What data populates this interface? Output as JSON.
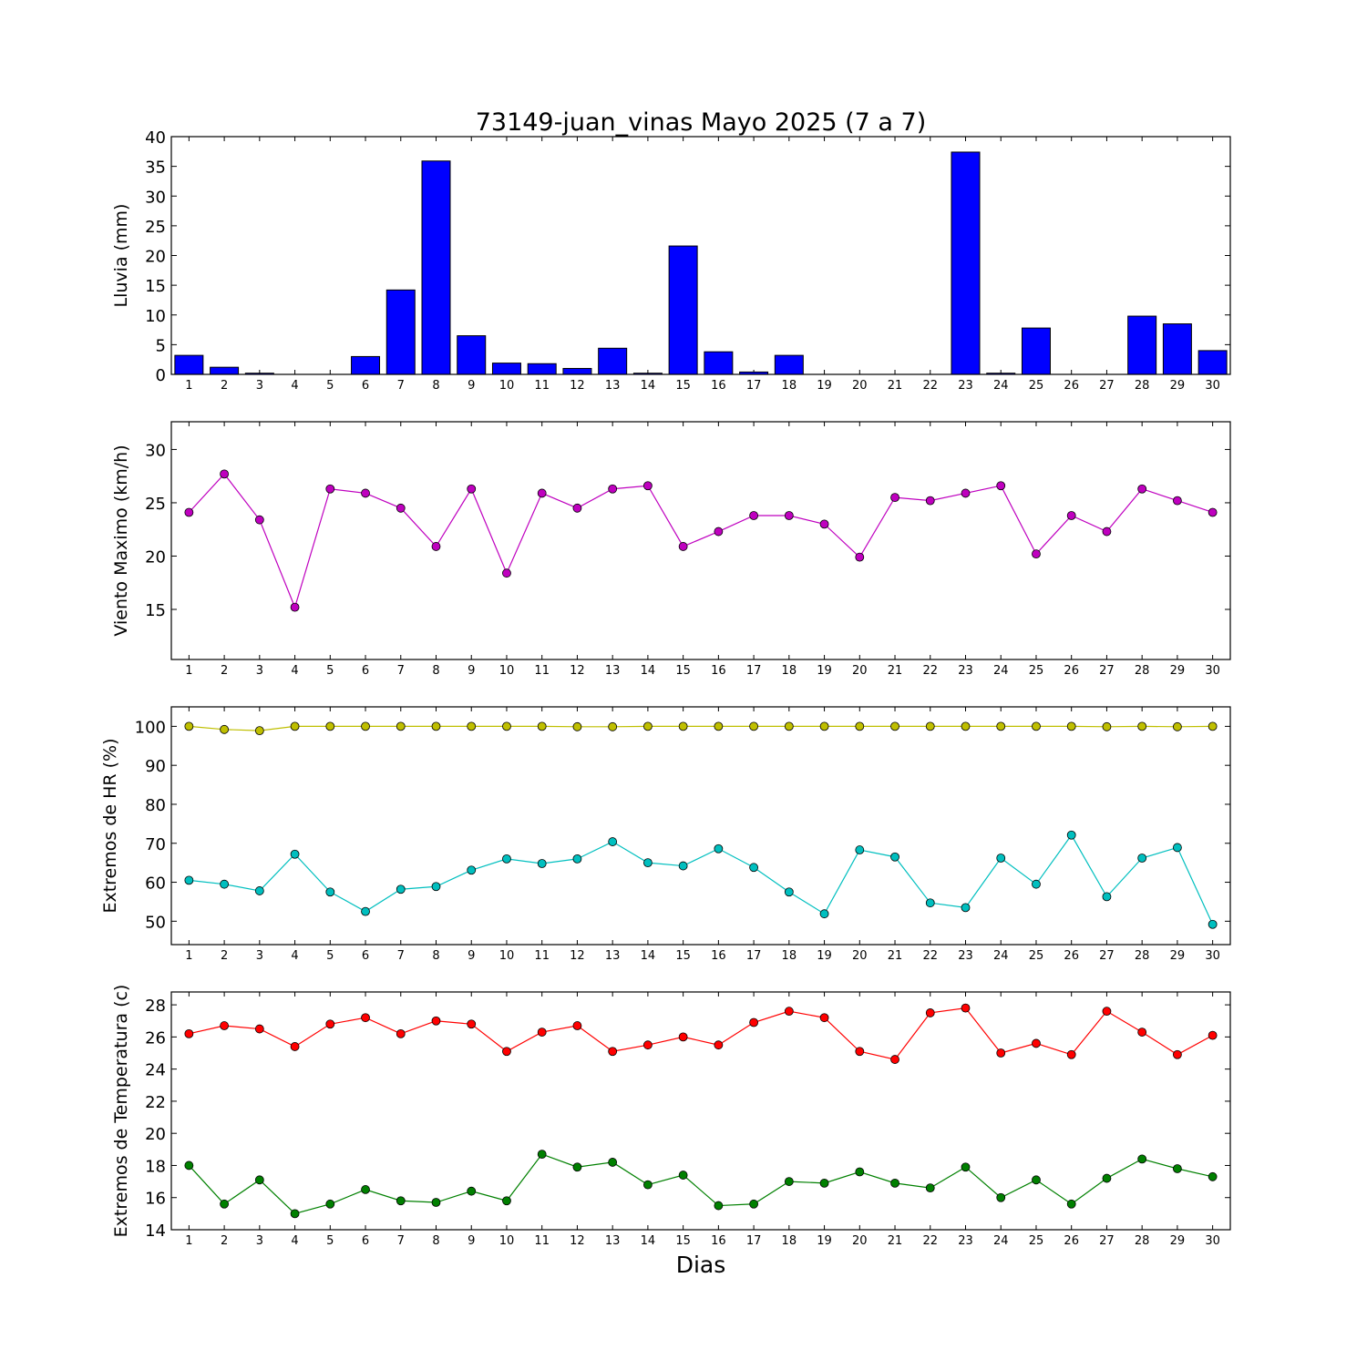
{
  "figure": {
    "title": "73149-juan_vinas Mayo 2025  (7 a 7)",
    "xlabel": "Dias"
  },
  "chart_data": [
    {
      "type": "bar",
      "ylabel": "Lluvia (mm)",
      "ylim": [
        0,
        40
      ],
      "yticks": [
        0,
        5,
        10,
        15,
        20,
        25,
        30,
        35,
        40
      ],
      "xlim": [
        0.5,
        30.5
      ],
      "categories": [
        "1",
        "2",
        "3",
        "4",
        "5",
        "6",
        "7",
        "8",
        "9",
        "10",
        "11",
        "12",
        "13",
        "14",
        "15",
        "16",
        "17",
        "18",
        "19",
        "20",
        "21",
        "22",
        "23",
        "24",
        "25",
        "26",
        "27",
        "28",
        "29",
        "30"
      ],
      "values": [
        3.2,
        1.2,
        0.2,
        0,
        0,
        3.0,
        14.2,
        35.9,
        6.5,
        1.9,
        1.8,
        1.0,
        4.4,
        0.2,
        21.6,
        3.8,
        0.4,
        3.2,
        0,
        0,
        0,
        0,
        37.4,
        0.2,
        7.8,
        0,
        0,
        9.8,
        8.5,
        4.0
      ],
      "color": "#0000ff",
      "grid": false
    },
    {
      "type": "line",
      "ylabel": "Viento Maximo (km/h)",
      "ylim": [
        10.3,
        32.6
      ],
      "yticks": [
        15,
        20,
        25,
        30
      ],
      "xlim": [
        0.5,
        30.5
      ],
      "x": [
        1,
        2,
        3,
        4,
        5,
        6,
        7,
        8,
        9,
        10,
        11,
        12,
        13,
        14,
        15,
        16,
        17,
        18,
        19,
        20,
        21,
        22,
        23,
        24,
        25,
        26,
        27,
        28,
        29,
        30
      ],
      "series": [
        {
          "values": [
            24.1,
            27.7,
            23.4,
            15.2,
            26.3,
            25.9,
            24.5,
            20.9,
            26.3,
            18.4,
            25.9,
            24.5,
            26.3,
            26.6,
            20.9,
            22.3,
            23.8,
            23.8,
            23.0,
            19.9,
            25.5,
            25.2,
            25.9,
            26.6,
            20.2,
            23.8,
            22.3,
            26.3,
            25.2,
            24.1
          ],
          "color": "#bf00bf"
        }
      ],
      "grid": false
    },
    {
      "type": "line",
      "ylabel": "Extremos de HR (%)",
      "ylim": [
        44,
        105
      ],
      "yticks": [
        50,
        60,
        70,
        80,
        90,
        100
      ],
      "xlim": [
        0.5,
        30.5
      ],
      "x": [
        1,
        2,
        3,
        4,
        5,
        6,
        7,
        8,
        9,
        10,
        11,
        12,
        13,
        14,
        15,
        16,
        17,
        18,
        19,
        20,
        21,
        22,
        23,
        24,
        25,
        26,
        27,
        28,
        29,
        30
      ],
      "series": [
        {
          "values": [
            100,
            99.2,
            98.9,
            100,
            100,
            100,
            100,
            100,
            100,
            100,
            100,
            99.9,
            99.9,
            100,
            100,
            100,
            100,
            100,
            100,
            100,
            100,
            100,
            100,
            100,
            100,
            100,
            99.9,
            100,
            99.9,
            100
          ],
          "color": "#bfbf00"
        },
        {
          "values": [
            60.5,
            59.5,
            57.8,
            67.2,
            57.5,
            52.5,
            58.2,
            58.9,
            63.1,
            66.0,
            64.8,
            66.0,
            70.4,
            65.0,
            64.2,
            68.6,
            63.8,
            57.5,
            51.9,
            68.3,
            66.5,
            54.7,
            53.5,
            66.2,
            59.5,
            72.1,
            56.3,
            66.2,
            68.9,
            49.2
          ],
          "color": "#00bfbf"
        }
      ],
      "grid": false
    },
    {
      "type": "line",
      "ylabel": "Extremos de Temperatura (c)",
      "ylim": [
        14,
        28.8
      ],
      "yticks": [
        14,
        16,
        18,
        20,
        22,
        24,
        26,
        28
      ],
      "xlim": [
        0.5,
        30.5
      ],
      "x": [
        1,
        2,
        3,
        4,
        5,
        6,
        7,
        8,
        9,
        10,
        11,
        12,
        13,
        14,
        15,
        16,
        17,
        18,
        19,
        20,
        21,
        22,
        23,
        24,
        25,
        26,
        27,
        28,
        29,
        30
      ],
      "series": [
        {
          "values": [
            26.2,
            26.7,
            26.5,
            25.4,
            26.8,
            27.2,
            26.2,
            27.0,
            26.8,
            25.1,
            26.3,
            26.7,
            25.1,
            25.5,
            26.0,
            25.5,
            26.9,
            27.6,
            27.2,
            25.1,
            24.6,
            27.5,
            27.8,
            25.0,
            25.6,
            24.9,
            27.6,
            26.3,
            24.9,
            26.1
          ],
          "color": "#ff0000"
        },
        {
          "values": [
            18.0,
            15.6,
            17.1,
            15.0,
            15.6,
            16.5,
            15.8,
            15.7,
            16.4,
            15.8,
            18.7,
            17.9,
            18.2,
            16.8,
            17.4,
            15.5,
            15.6,
            17.0,
            16.9,
            17.6,
            16.9,
            16.6,
            17.9,
            16.0,
            17.1,
            15.6,
            17.2,
            18.4,
            17.8,
            17.3
          ],
          "color": "#008000"
        }
      ],
      "grid": false
    }
  ]
}
